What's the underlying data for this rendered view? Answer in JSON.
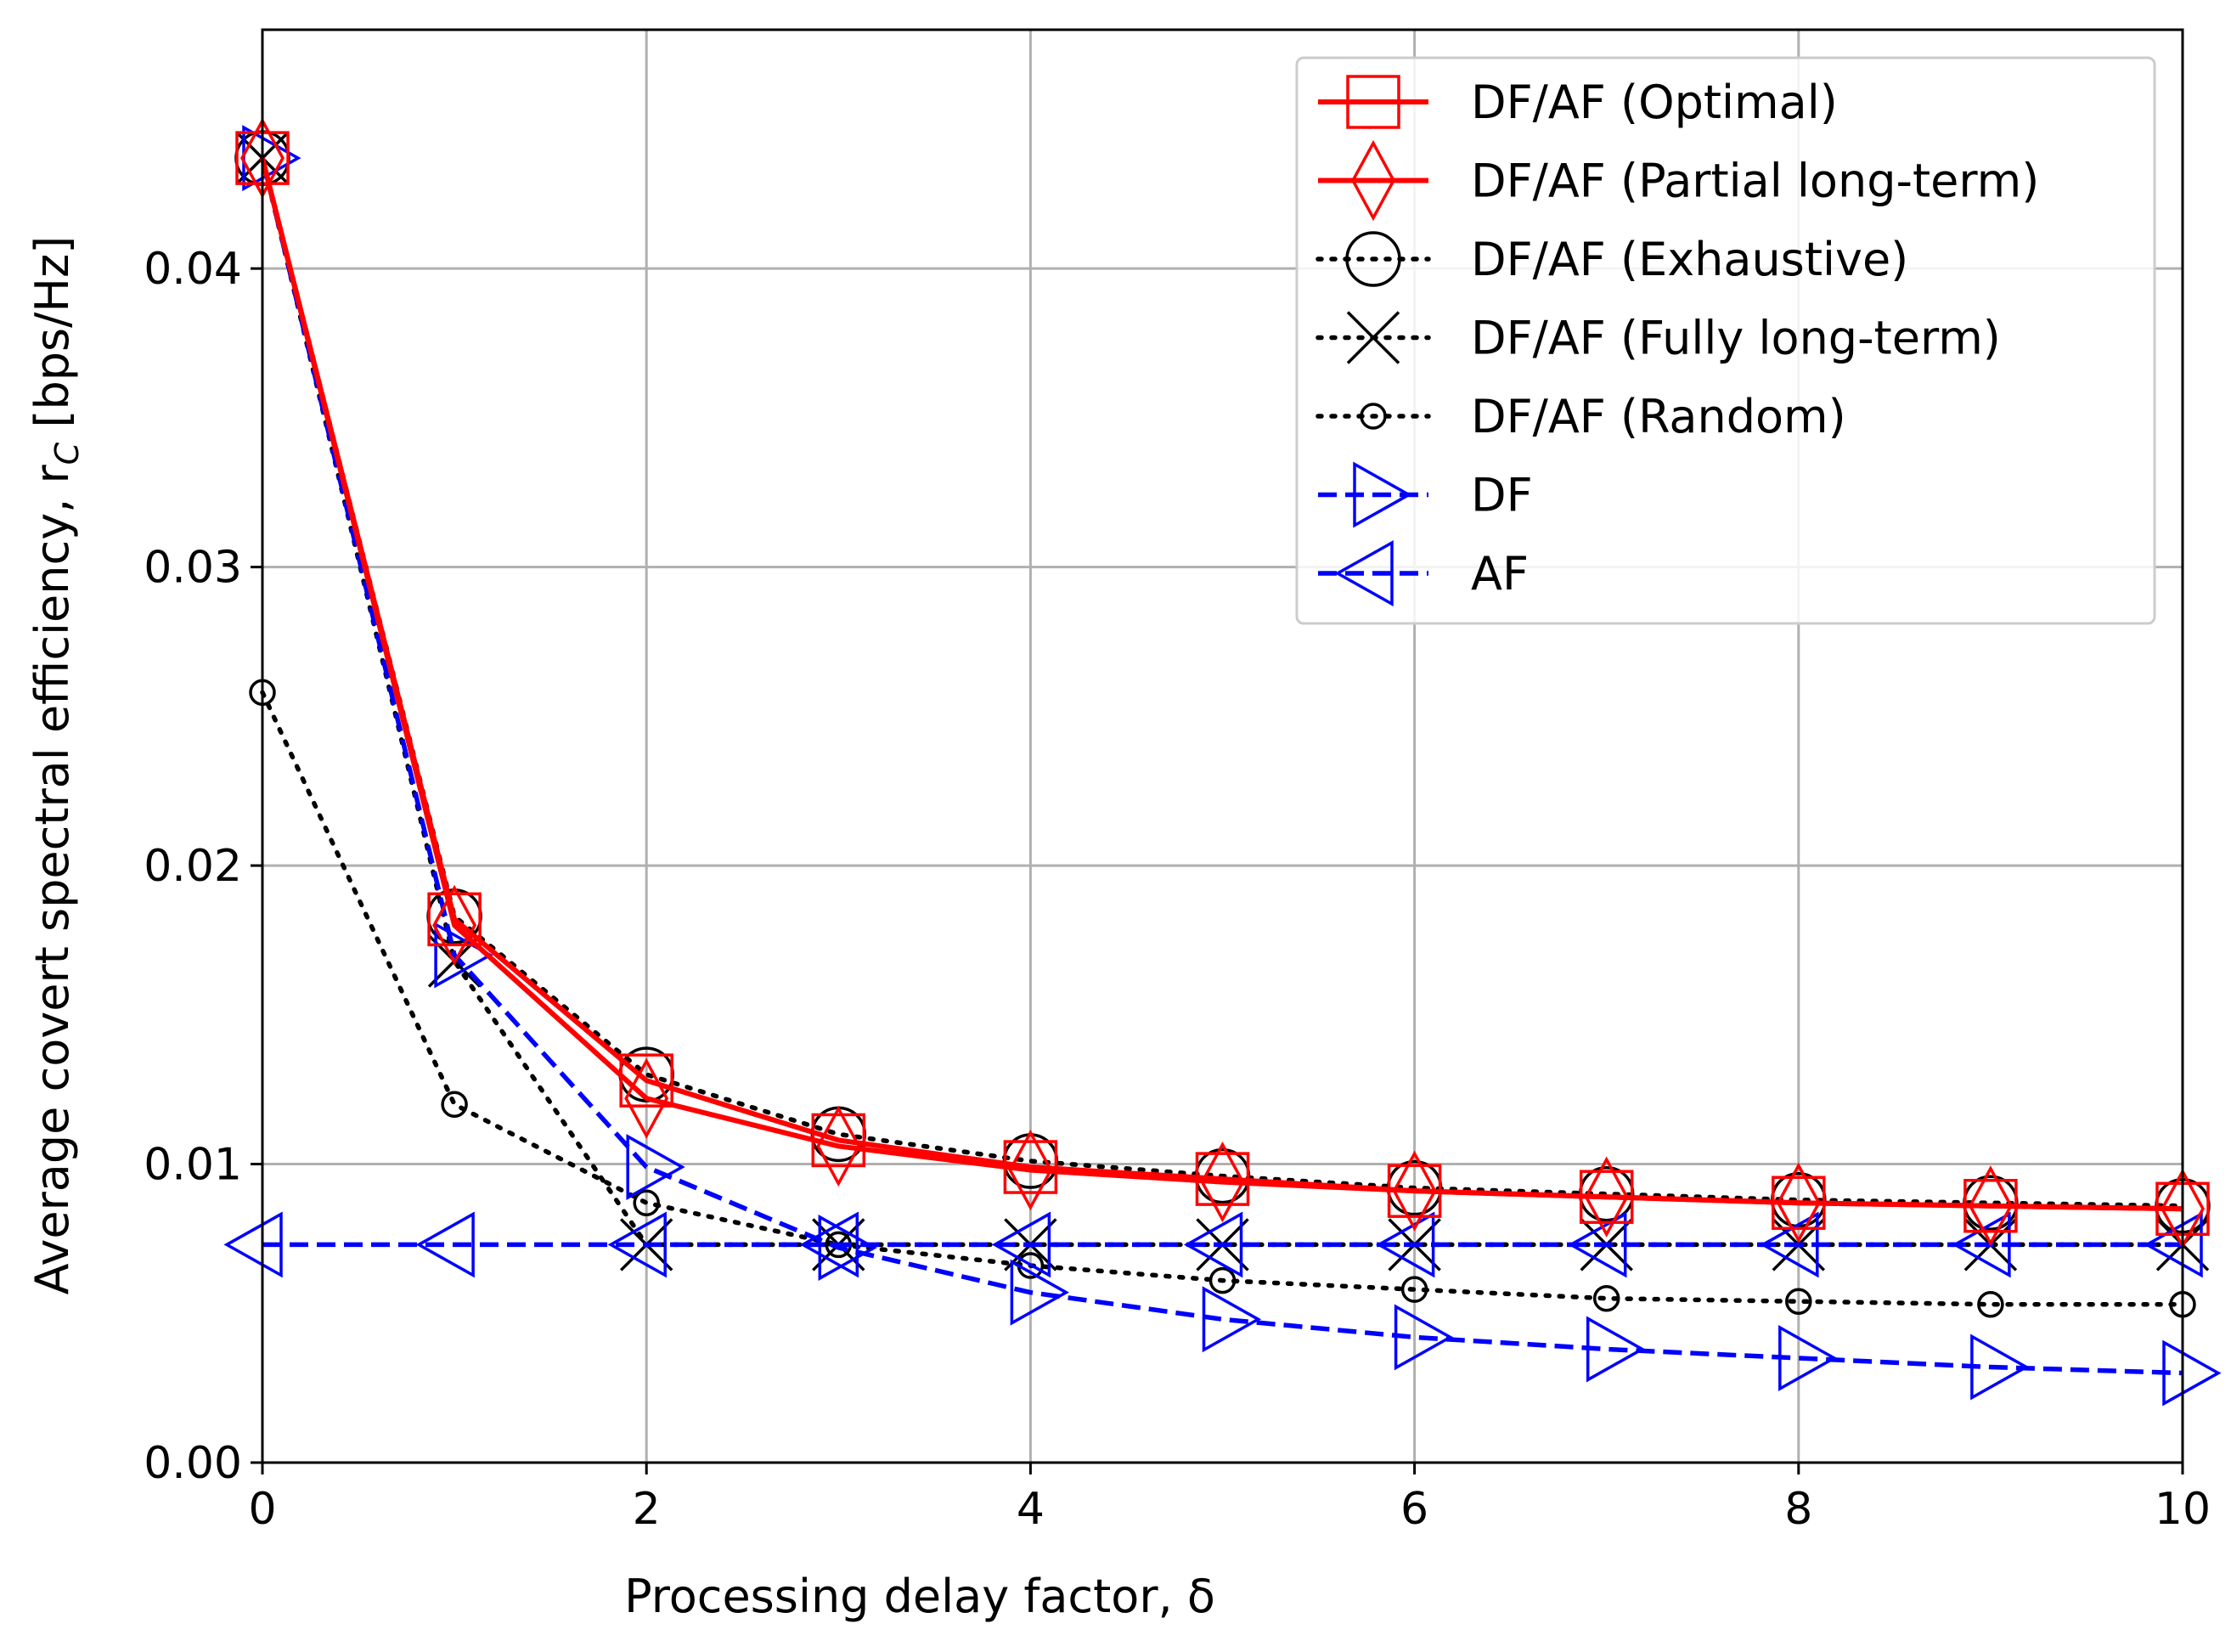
{
  "chart_data": {
    "type": "line",
    "xlabel": "Processing delay factor, δ",
    "ylabel": "Average covert spectral efficiency, r",
    "ylabel_subscript": "C",
    "ylabel_units": " [bps/Hz]",
    "xlim": [
      0,
      10
    ],
    "ylim": [
      0,
      0.048
    ],
    "xticks": [
      0,
      2,
      4,
      6,
      8,
      10
    ],
    "xtick_labels": [
      "0",
      "2",
      "4",
      "6",
      "8",
      "10"
    ],
    "yticks": [
      0,
      0.01,
      0.02,
      0.03,
      0.04
    ],
    "ytick_labels": [
      "0.00",
      "0.01",
      "0.02",
      "0.03",
      "0.04"
    ],
    "grid": true,
    "legend_position": "top-right",
    "x": [
      0,
      1,
      2,
      3,
      4,
      5,
      6,
      7,
      8,
      9,
      10
    ],
    "series": [
      {
        "name": "DF/AF (Optimal)",
        "color": "#ff0000",
        "linestyle": "solid",
        "marker": "square",
        "values": [
          0.0437,
          0.0182,
          0.0128,
          0.0108,
          0.0099,
          0.0095,
          0.0091,
          0.0089,
          0.0087,
          0.0086,
          0.0085
        ]
      },
      {
        "name": "DF/AF (Partial long-term)",
        "color": "#ff0000",
        "linestyle": "solid",
        "marker": "diamond",
        "values": [
          0.0437,
          0.018,
          0.0122,
          0.0106,
          0.0098,
          0.0094,
          0.0091,
          0.0089,
          0.0087,
          0.0086,
          0.0085
        ]
      },
      {
        "name": "DF/AF (Exhaustive)",
        "color": "#000000",
        "linestyle": "dotted",
        "marker": "circle",
        "values": [
          0.0437,
          0.0183,
          0.013,
          0.011,
          0.0101,
          0.0096,
          0.0092,
          0.009,
          0.0088,
          0.0087,
          0.0086
        ]
      },
      {
        "name": "DF/AF (Fully long-term)",
        "color": "#000000",
        "linestyle": "dotted",
        "marker": "x",
        "values": [
          0.0437,
          0.0168,
          0.0073,
          0.0073,
          0.0073,
          0.0073,
          0.0073,
          0.0073,
          0.0073,
          0.0073,
          0.0073
        ]
      },
      {
        "name": "DF/AF (Random)",
        "color": "#000000",
        "linestyle": "dotted",
        "marker": "small-circle",
        "values": [
          0.0258,
          0.012,
          0.0087,
          0.0073,
          0.0066,
          0.0061,
          0.0058,
          0.0055,
          0.0054,
          0.0053,
          0.0053
        ]
      },
      {
        "name": "DF",
        "color": "#0000ff",
        "linestyle": "dashed",
        "marker": "triangle-right",
        "values": [
          0.0437,
          0.017,
          0.0099,
          0.0072,
          0.0057,
          0.0048,
          0.0042,
          0.0038,
          0.0035,
          0.0032,
          0.003
        ]
      },
      {
        "name": "AF",
        "color": "#0000ff",
        "linestyle": "dashed",
        "marker": "triangle-left",
        "values": [
          0.0073,
          0.0073,
          0.0073,
          0.0073,
          0.0073,
          0.0073,
          0.0073,
          0.0073,
          0.0073,
          0.0073,
          0.0073
        ]
      }
    ]
  }
}
